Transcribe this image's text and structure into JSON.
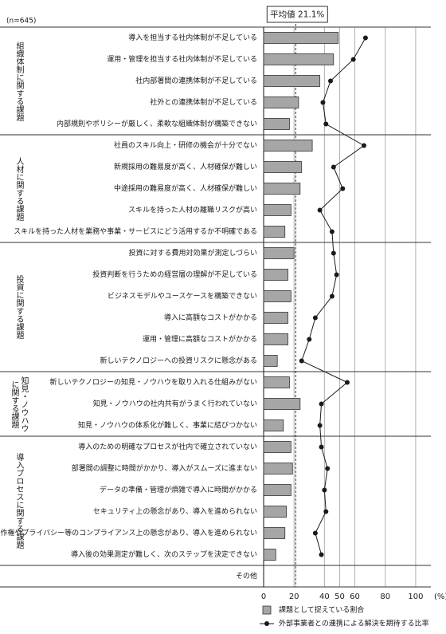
{
  "chart_data": {
    "type": "bar_line",
    "n_label": "(n=645)",
    "groups": [
      {
        "label": "組織体制に関する課題",
        "categories": [
          "導入を担当する社内体制が不足している",
          "運用・管理を担当する社内体制が不足している",
          "社内部署間の連携体制が不足している",
          "社外との連携体制が不足している",
          "内部規則やポリシーが厳しく、柔軟な組織体制が構築できない"
        ]
      },
      {
        "label": "人材に関する課題",
        "categories": [
          "社員のスキル向上・研修の機会が十分でない",
          "新規採用の難易度が高く、人材確保が難しい",
          "中途採用の難易度が高く、人材確保が難しい",
          "スキルを持った人材の離職リスクが高い",
          "スキルを持った人材を業務や事業・サービスにどう活用するか不明確である"
        ]
      },
      {
        "label": "投資に関する課題",
        "categories": [
          "投資に対する費用対効果が測定しづらい",
          "投資判断を行うための経営層の理解が不足している",
          "ビジネスモデルやユースケースを構築できない",
          "導入に高額なコストがかかる",
          "運用・管理に高額なコストがかかる",
          "新しいテクノロジーへの投資リスクに懸念がある"
        ]
      },
      {
        "label": "知見・ノウハウに関する課題",
        "categories": [
          "新しいテクノロジーの知見・ノウハウを取り入れる仕組みがない",
          "知見・ノウハウの社内共有がうまく行われていない",
          "知見・ノウハウの体系化が難しく、事業に結びつかない"
        ]
      },
      {
        "label": "導入プロセスに関する課題",
        "categories": [
          "導入のための明確なプロセスが社内で確立されていない",
          "部署間の調整に時間がかかり、導入がスムーズに進まない",
          "データの準備・管理が煩雑で導入に時間がかかる",
          "セキュリティ上の懸念があり、導入を進められない",
          "著作権やプライバシー等のコンプライアンス上の懸念があり、導入を進められない",
          "導入後の効果測定が難しく、次のステップを決定できない"
        ]
      },
      {
        "label": null,
        "categories": [
          "その他"
        ]
      }
    ],
    "series": [
      {
        "name": "課題として捉えている割合",
        "type": "bar",
        "color": "#a6a6a6",
        "values": [
          49,
          46,
          37,
          23,
          17,
          32,
          25,
          24,
          18,
          14,
          20,
          16,
          18,
          16,
          16,
          9,
          17,
          24,
          13,
          18,
          19,
          18,
          15,
          14,
          8,
          null
        ]
      },
      {
        "name": "外部事業者との連携による解決を期待する比率",
        "type": "line",
        "color": "#1a1a1a",
        "values": [
          67,
          59,
          44,
          39,
          41,
          66,
          46,
          52,
          37,
          45,
          46,
          48,
          45,
          34,
          30,
          25,
          55,
          38,
          37,
          38,
          42,
          40,
          41,
          34,
          38,
          null
        ]
      }
    ],
    "average": {
      "value": 21.1,
      "label": "平均値 21.1%"
    },
    "xlim": [
      0,
      110
    ],
    "xticks": [
      0,
      20,
      40,
      50,
      60,
      80,
      100
    ],
    "x_unit": "(%)",
    "grid": true
  }
}
